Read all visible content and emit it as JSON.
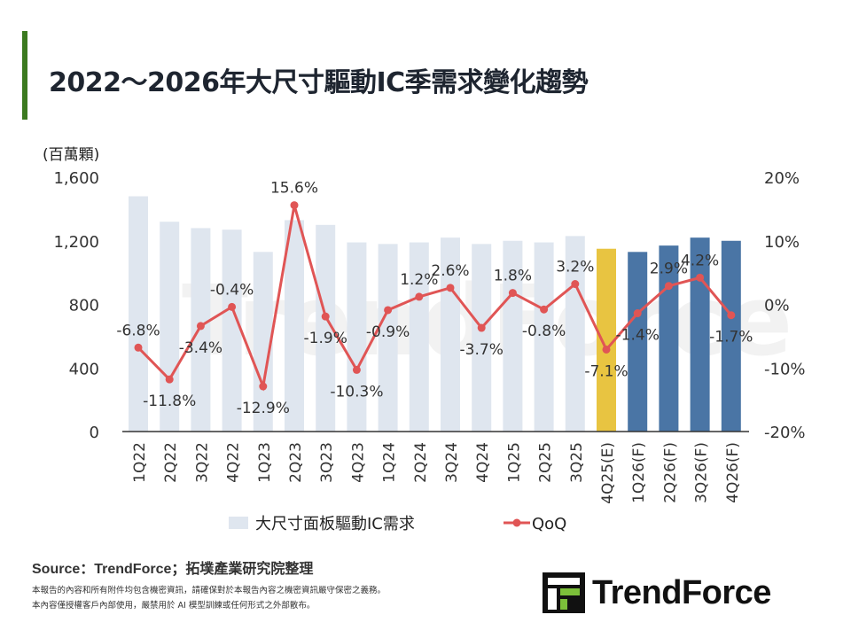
{
  "title": "2022～2026年大尺寸驅動IC季需求變化趨勢",
  "source": "Source：TrendForce；拓墣產業研究院整理",
  "disclaimer": [
    "本報告的內容和所有附件均包含機密資訊，請確保對於本報告內容之機密資訊嚴守保密之義務。",
    "本內容僅授權客戶內部使用，嚴禁用於 AI 模型訓練或任何形式之外部散布。"
  ],
  "logo": "TrendForce",
  "chart_data": {
    "type": "bar+line",
    "ylabel": "(百萬顆)",
    "ylim": [
      0,
      1600
    ],
    "yticks": [
      "0",
      "400",
      "800",
      "1,200",
      "1,600"
    ],
    "y2lim": [
      -20,
      20
    ],
    "y2ticks": [
      "-20%",
      "-10%",
      "0%",
      "10%",
      "20%"
    ],
    "categories": [
      "1Q22",
      "2Q22",
      "3Q22",
      "4Q22",
      "1Q23",
      "2Q23",
      "3Q23",
      "4Q23",
      "1Q24",
      "2Q24",
      "3Q24",
      "4Q24",
      "1Q25",
      "2Q25",
      "3Q25",
      "4Q25(E)",
      "1Q26(F)",
      "2Q26(F)",
      "3Q26(F)",
      "4Q26(F)"
    ],
    "series": [
      {
        "name": "大尺寸面板驅動IC需求",
        "type": "bar",
        "axis": "left",
        "values": [
          1480,
          1320,
          1280,
          1270,
          1130,
          1330,
          1300,
          1190,
          1180,
          1190,
          1220,
          1180,
          1200,
          1190,
          1230,
          1150,
          1130,
          1170,
          1220,
          1200
        ],
        "colors": {
          "actual": "#dfe6ef",
          "estimate": "#e8c441",
          "forecast": "#4a75a5"
        }
      },
      {
        "name": "QoQ",
        "type": "line",
        "axis": "right",
        "color": "#e05555",
        "values": [
          -6.8,
          -11.8,
          -3.4,
          -0.4,
          -12.9,
          15.6,
          -1.9,
          -10.3,
          -0.9,
          1.2,
          2.6,
          -3.7,
          1.8,
          -0.8,
          3.2,
          -7.1,
          -1.4,
          2.9,
          4.2,
          -1.7
        ],
        "labels": [
          "-6.8%",
          "-11.8%",
          "-3.4%",
          "-0.4%",
          "-12.9%",
          "15.6%",
          "-1.9%",
          "-10.3%",
          "-0.9%",
          "1.2%",
          "2.6%",
          "-3.7%",
          "1.8%",
          "-0.8%",
          "3.2%",
          "-7.1%",
          "-1.4%",
          "2.9%",
          "4.2%",
          "-1.7%"
        ]
      }
    ],
    "legend": "bottom",
    "grid": false
  }
}
